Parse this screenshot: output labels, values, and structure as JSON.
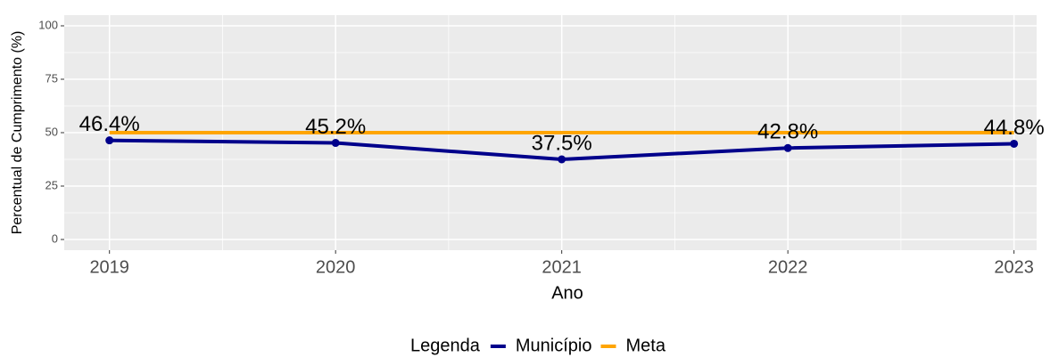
{
  "chart_data": {
    "type": "line",
    "x": [
      2019,
      2020,
      2021,
      2022,
      2023
    ],
    "xlim": [
      2018.8,
      2023.1
    ],
    "xticks": [
      2019,
      2020,
      2021,
      2022,
      2023
    ],
    "ylim": [
      -5,
      105
    ],
    "yticks": [
      0,
      25,
      50,
      75,
      100
    ],
    "xlabel": "Ano",
    "ylabel": "Percentual de Cumprimento (%)",
    "legend_title": "Legenda",
    "legend_position": "bottom",
    "grid": true,
    "minor_grid": true,
    "series": [
      {
        "name": "Município",
        "color": "#00008b",
        "values": [
          46.4,
          45.2,
          37.5,
          42.8,
          44.8
        ],
        "value_labels": [
          "46.4%",
          "45.2%",
          "37.5%",
          "42.8%",
          "44.8%"
        ],
        "markers": true
      },
      {
        "name": "Meta",
        "color": "#ffa500",
        "values": [
          50,
          50,
          50,
          50,
          50
        ]
      }
    ]
  }
}
